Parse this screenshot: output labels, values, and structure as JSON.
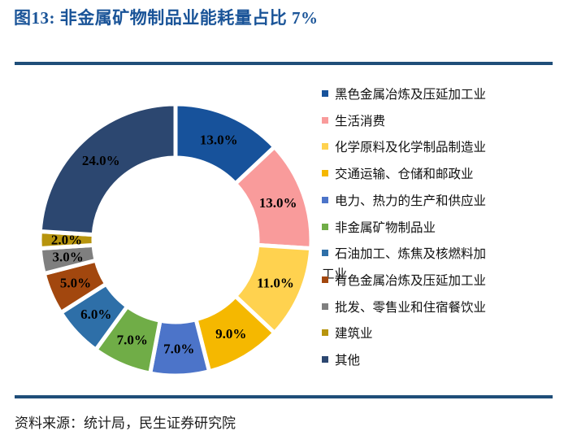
{
  "figure": {
    "title": "图13: 非金属矿物制品业能耗量占比 7%",
    "source": "资料来源：统计局，民生证券研究院"
  },
  "colors": {
    "title_text": "#1A5498",
    "divider": "#1F4E79",
    "data_label_text": "#000000",
    "slice_gap_stroke": "#FFFFFF"
  },
  "chart_data": {
    "type": "pie",
    "subtype": "donut",
    "direction": "clockwise",
    "start_angle_deg": 0,
    "legend_position": "right",
    "data_label_format": "{value:.1f}%",
    "grid": false,
    "slices": [
      {
        "label": "黑色金属冶炼及压延加工业",
        "value": 13.0,
        "color": "#17529B"
      },
      {
        "label": "生活消费",
        "value": 13.0,
        "color": "#F99B9B"
      },
      {
        "label": "化学原料及化学制品制造业",
        "value": 11.0,
        "color": "#FFD24F"
      },
      {
        "label": "交通运输、仓储和邮政业",
        "value": 9.0,
        "color": "#F5B800"
      },
      {
        "label": "电力、热力的生产和供应业",
        "value": 7.0,
        "color": "#4C74C9"
      },
      {
        "label": "非金属矿物制品业",
        "value": 7.0,
        "color": "#70AD47"
      },
      {
        "label": "石油加工、炼焦及核燃料加工业",
        "value": 6.0,
        "color": "#2E6FA8",
        "wrap_after": 12
      },
      {
        "label": "有色金属冶炼及压延加工业",
        "value": 5.0,
        "color": "#A2470E"
      },
      {
        "label": "批发、零售业和住宿餐饮业",
        "value": 3.0,
        "color": "#7F7F7F"
      },
      {
        "label": "建筑业",
        "value": 2.0,
        "color": "#B7940D"
      },
      {
        "label": "其他",
        "value": 24.0,
        "color": "#2C4770"
      }
    ]
  }
}
